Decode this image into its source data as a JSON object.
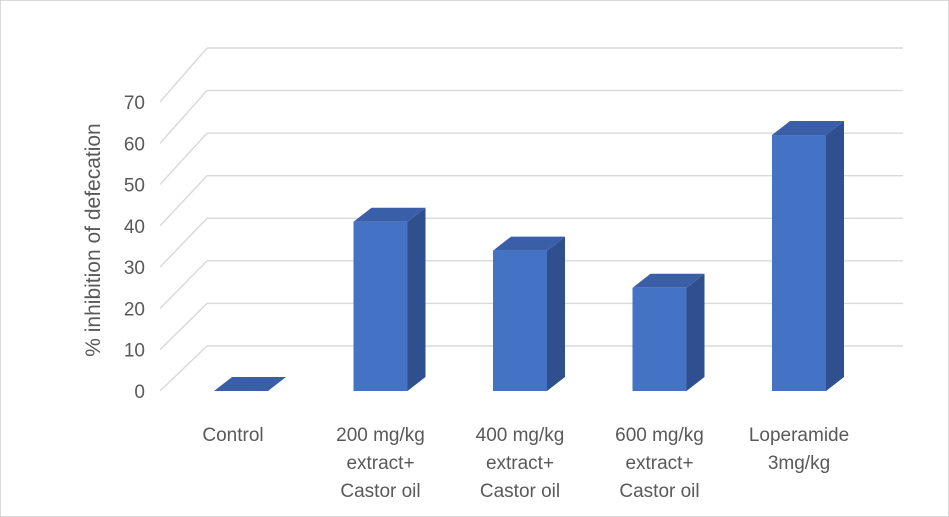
{
  "chart_data": {
    "type": "bar",
    "style": "3d-column",
    "categories": [
      [
        "Control"
      ],
      [
        "200 mg/kg",
        "extract+",
        "Castor oil"
      ],
      [
        "400 mg/kg",
        "extract+",
        "Castor oil"
      ],
      [
        "600 mg/kg",
        "extract+",
        "Castor oil"
      ],
      [
        "Loperamide",
        "3mg/kg"
      ]
    ],
    "values": [
      0,
      41,
      34,
      25,
      62
    ],
    "title": "",
    "xlabel": "",
    "ylabel": "% inhibition of defecation",
    "ylim": [
      0,
      70
    ],
    "yticks": [
      "0",
      "10",
      "20",
      "30",
      "40",
      "50",
      "60",
      "70"
    ],
    "grid": true,
    "legend": "none",
    "colors": {
      "front": "#4472C4",
      "side": "#2F4F8F",
      "top": "#3A5FA8",
      "grid": "#d9d9d9",
      "text": "#595959"
    }
  }
}
